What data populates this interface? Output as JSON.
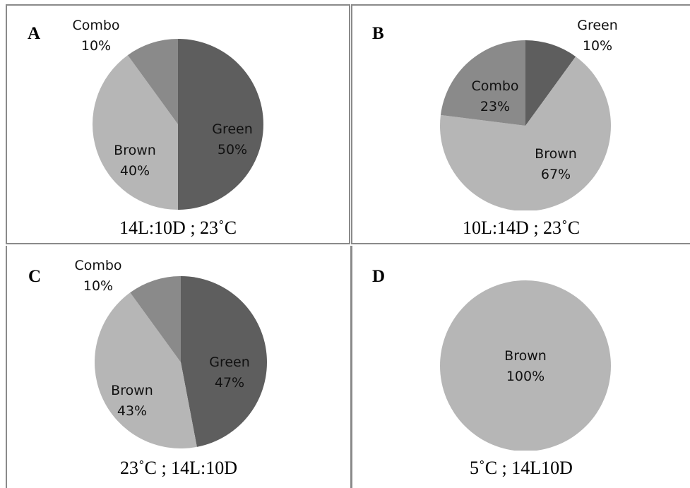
{
  "chart_data": [
    {
      "type": "pie",
      "panel_letter": "A",
      "caption": "14L:10D ; 23˚C",
      "slices": [
        {
          "label": "Green",
          "value": 50,
          "value_label": "50%",
          "color": "#5e5e5e"
        },
        {
          "label": "Brown",
          "value": 40,
          "value_label": "40%",
          "color": "#b6b6b6"
        },
        {
          "label": "Combo",
          "value": 10,
          "value_label": "10%",
          "color": "#8a8a8a"
        }
      ]
    },
    {
      "type": "pie",
      "panel_letter": "B",
      "caption": "10L:14D ; 23˚C",
      "slices": [
        {
          "label": "Green",
          "value": 10,
          "value_label": "10%",
          "color": "#5e5e5e"
        },
        {
          "label": "Brown",
          "value": 67,
          "value_label": "67%",
          "color": "#b6b6b6"
        },
        {
          "label": "Combo",
          "value": 23,
          "value_label": "23%",
          "color": "#8a8a8a"
        }
      ]
    },
    {
      "type": "pie",
      "panel_letter": "C",
      "caption": "23˚C ; 14L:10D",
      "slices": [
        {
          "label": "Green",
          "value": 47,
          "value_label": "47%",
          "color": "#5e5e5e"
        },
        {
          "label": "Brown",
          "value": 43,
          "value_label": "43%",
          "color": "#b6b6b6"
        },
        {
          "label": "Combo",
          "value": 10,
          "value_label": "10%",
          "color": "#8a8a8a"
        }
      ]
    },
    {
      "type": "pie",
      "panel_letter": "D",
      "caption": "5˚C ; 14L10D",
      "slices": [
        {
          "label": "Brown",
          "value": 100,
          "value_label": "100%",
          "color": "#b6b6b6"
        }
      ]
    }
  ]
}
